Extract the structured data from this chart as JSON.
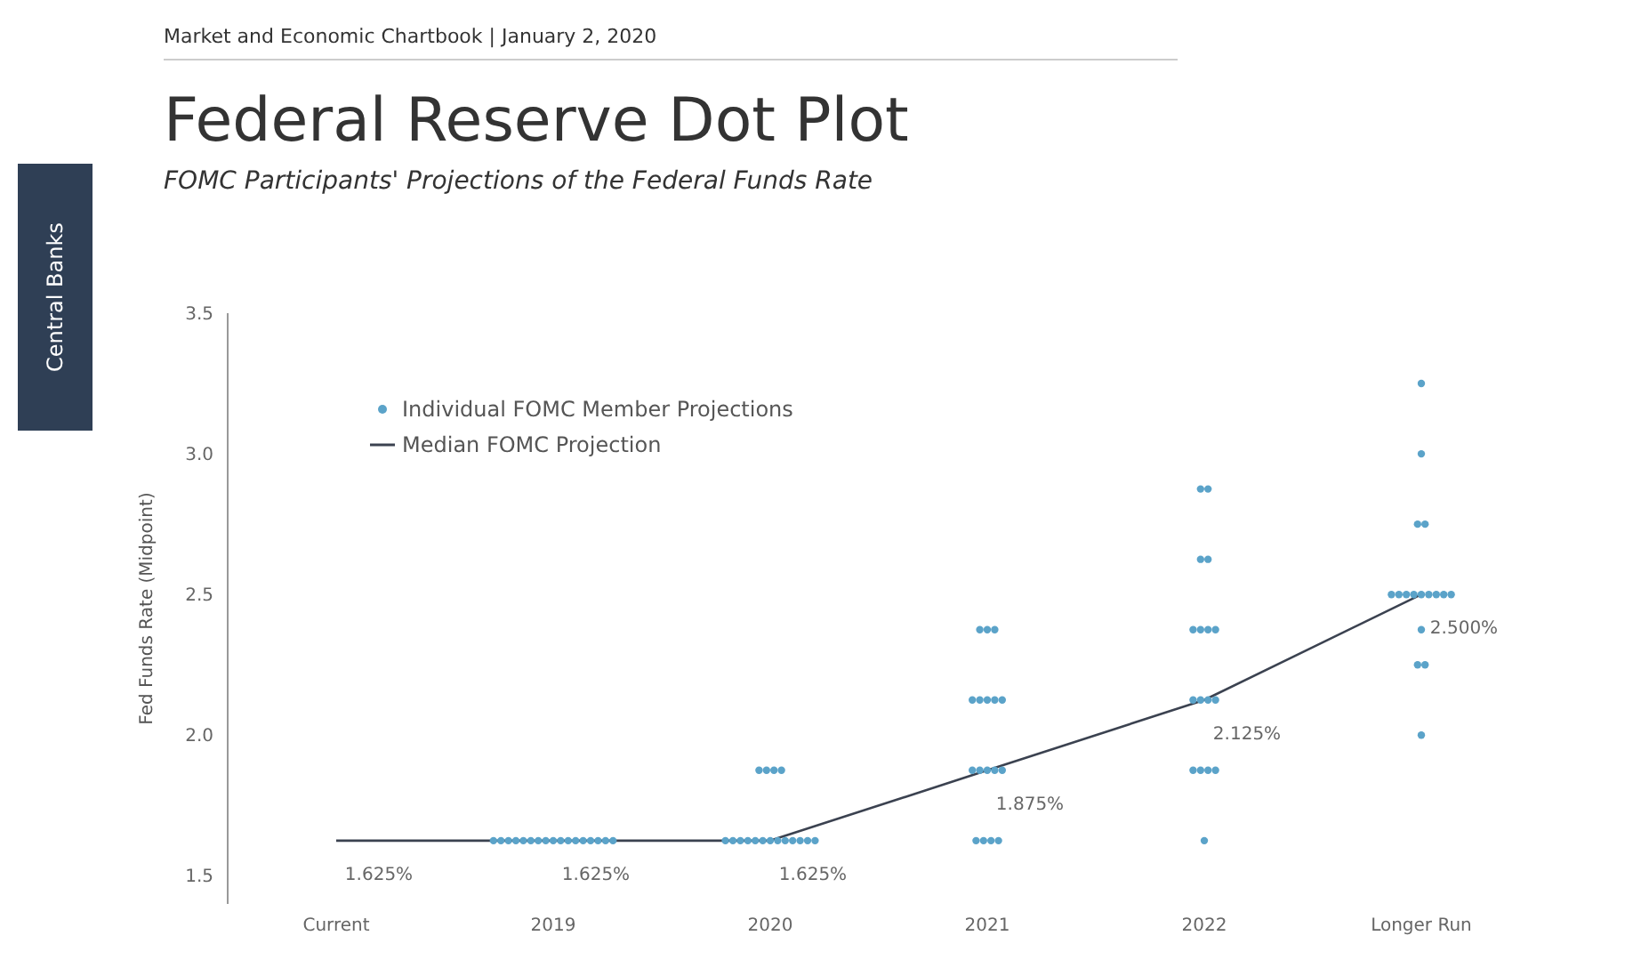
{
  "chart_data": {
    "type": "scatter",
    "title": "Federal Reserve Dot Plot",
    "subtitle": "FOMC Participants' Projections of the Federal Funds Rate",
    "annotations": [
      "Market and Economic Chartbook | January 2, 2020",
      "Central Banks"
    ],
    "ylabel": "Fed Funds Rate (Midpoint)",
    "categories": [
      "Current",
      "2019",
      "2020",
      "2021",
      "2022",
      "Longer Run"
    ],
    "ylim": [
      1.4,
      3.5
    ],
    "yticks": [
      {
        "value": 1.5,
        "label": "1.5"
      },
      {
        "value": 2,
        "label": "2.0"
      },
      {
        "value": 2.5,
        "label": "2.5"
      },
      {
        "value": 3,
        "label": "3.0"
      },
      {
        "value": 3.5,
        "label": "3.5"
      }
    ],
    "legend": "top left",
    "marker": "circle",
    "series": [
      {
        "name": "Individual FOMC Member Projections",
        "color": "#5ba3c9",
        "values": [
          null,
          1.625,
          1.625,
          1.625,
          1.625,
          2
        ]
      },
      {
        "color": "#5ba3c9",
        "values": [
          null,
          1.625,
          1.625,
          1.625,
          1.875,
          2.25
        ]
      },
      {
        "color": "#5ba3c9",
        "values": [
          null,
          1.625,
          1.625,
          1.625,
          1.875,
          2.25
        ]
      },
      {
        "color": "#5ba3c9",
        "values": [
          null,
          1.625,
          1.625,
          1.625,
          1.875,
          2.375
        ]
      },
      {
        "color": "#5ba3c9",
        "values": [
          null,
          1.625,
          1.625,
          1.875,
          1.875,
          2.5
        ]
      },
      {
        "color": "#5ba3c9",
        "values": [
          null,
          1.625,
          1.625,
          1.875,
          2.125,
          2.5
        ]
      },
      {
        "color": "#5ba3c9",
        "values": [
          null,
          1.625,
          1.625,
          1.875,
          2.125,
          2.5
        ]
      },
      {
        "color": "#5ba3c9",
        "values": [
          null,
          1.625,
          1.625,
          1.875,
          2.125,
          2.5
        ]
      },
      {
        "color": "#5ba3c9",
        "values": [
          null,
          1.625,
          1.625,
          1.875,
          2.125,
          2.5
        ]
      },
      {
        "color": "#5ba3c9",
        "values": [
          null,
          1.625,
          1.625,
          2.125,
          2.375,
          2.5
        ]
      },
      {
        "color": "#5ba3c9",
        "values": [
          null,
          1.625,
          1.625,
          2.125,
          2.375,
          2.5
        ]
      },
      {
        "color": "#5ba3c9",
        "values": [
          null,
          1.625,
          1.625,
          2.125,
          2.375,
          2.5
        ]
      },
      {
        "color": "#5ba3c9",
        "values": [
          null,
          1.625,
          1.625,
          2.125,
          2.375,
          2.5
        ]
      },
      {
        "color": "#5ba3c9",
        "values": [
          null,
          1.625,
          1.875,
          2.125,
          2.625,
          2.75
        ]
      },
      {
        "color": "#5ba3c9",
        "values": [
          null,
          1.625,
          1.875,
          2.375,
          2.625,
          2.75
        ]
      },
      {
        "color": "#5ba3c9",
        "values": [
          null,
          1.625,
          1.875,
          2.375,
          2.875,
          3
        ]
      },
      {
        "color": "#5ba3c9",
        "values": [
          null,
          1.625,
          1.875,
          2.375,
          2.875,
          3.25
        ]
      },
      {
        "name": "Median FOMC Projection",
        "type": "line",
        "marker": "none",
        "line_style": "solid",
        "color": "#3b4250",
        "values": [
          1.625,
          1.625,
          1.625,
          1.875,
          2.125,
          2.5
        ],
        "value_labels": [
          "1.625%",
          "1.625%",
          "1.625%",
          "1.875%",
          "2.125%",
          "2.500%"
        ]
      }
    ]
  }
}
